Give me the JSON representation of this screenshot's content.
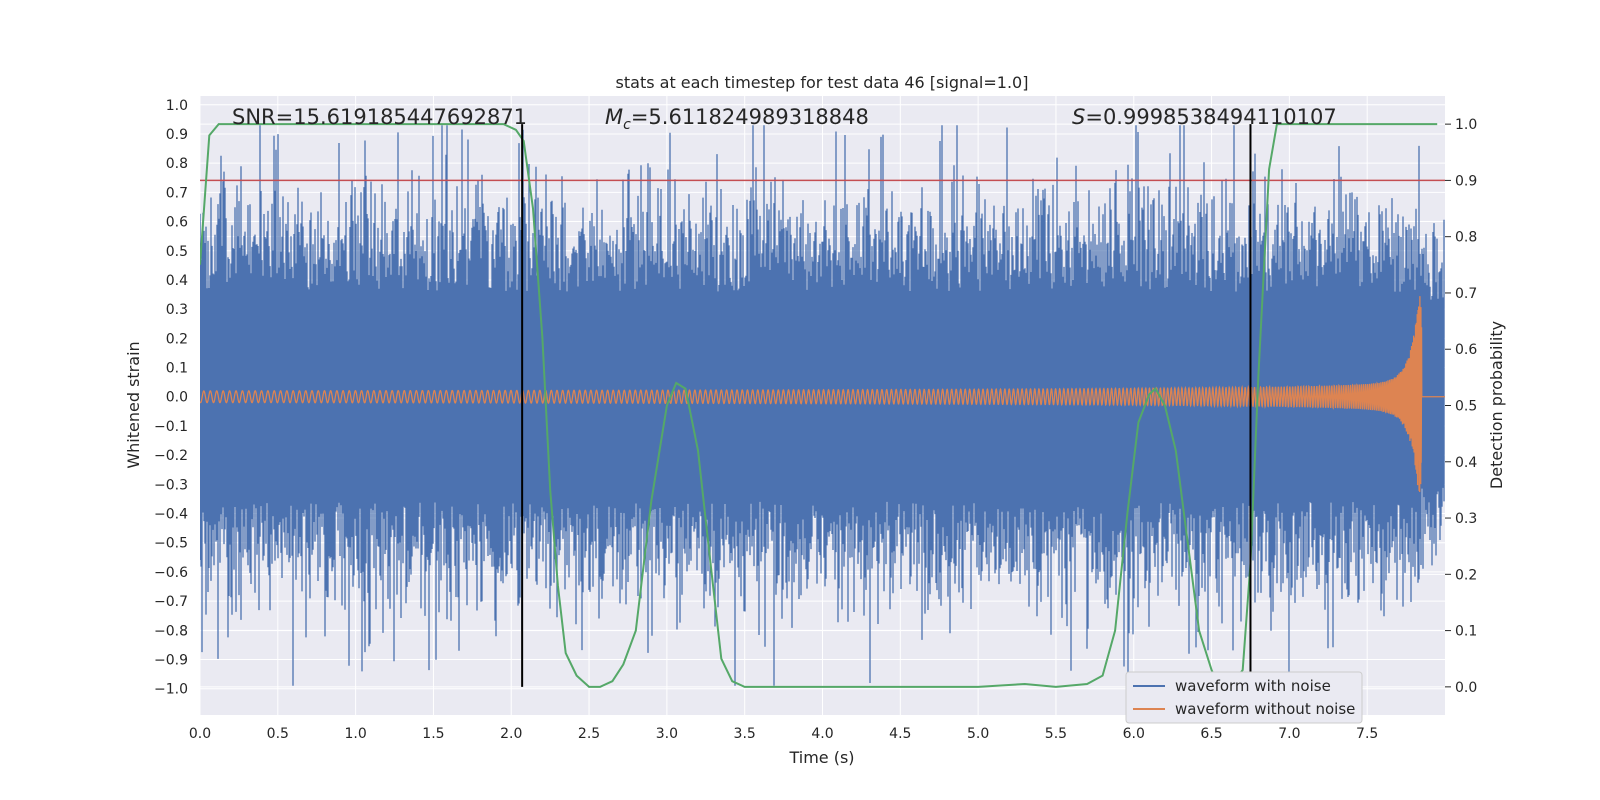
{
  "chart_data": {
    "type": "line",
    "title": "stats at each timestep for test data 46 [signal=1.0]",
    "xlabel": "Time (s)",
    "ylabel": "Whitened strain",
    "y2label": "Detection probability",
    "xlim": [
      0.0,
      8.0
    ],
    "ylim": [
      -1.09,
      1.03
    ],
    "y2lim": [
      -0.05,
      1.05
    ],
    "xticks": [
      "0.0",
      "0.5",
      "1.0",
      "1.5",
      "2.0",
      "2.5",
      "3.0",
      "3.5",
      "4.0",
      "4.5",
      "5.0",
      "5.5",
      "6.0",
      "6.5",
      "7.0",
      "7.5"
    ],
    "yticks": [
      "1.0",
      "0.9",
      "0.8",
      "0.7",
      "0.6",
      "0.5",
      "0.4",
      "0.3",
      "0.2",
      "0.1",
      "0.0",
      "−0.1",
      "−0.2",
      "−0.3",
      "−0.4",
      "−0.5",
      "−0.6",
      "−0.7",
      "−0.8",
      "−0.9",
      "−1.0"
    ],
    "y2ticks": [
      "1.0",
      "0.9",
      "0.8",
      "0.7",
      "0.6",
      "0.5",
      "0.4",
      "0.3",
      "0.2",
      "0.1",
      "0.0"
    ],
    "annotations": {
      "snr": "SNR=15.619185447692871",
      "mc_symbol": "M",
      "mc_sub": "c",
      "mc_value": "=5.611824989318848",
      "s_symbol": "S",
      "s_value": "=0.9998538494110107"
    },
    "threshold": {
      "value": 0.9,
      "axis": "y2",
      "color": "#c44e52"
    },
    "vlines": [
      2.07,
      6.75
    ],
    "merger_time": 7.85,
    "series": [
      {
        "name": "waveform with noise",
        "color": "#4c72b0",
        "axis": "y1",
        "description": "whitened noisy strain, amplitude ~0.5 with spikes up to ~0.93 and down to ~-0.99"
      },
      {
        "name": "waveform without noise",
        "color": "#dd8452",
        "axis": "y1",
        "description": "chirp signal, amplitude ~0.02 growing to ~0.37 at t=7.85 s"
      },
      {
        "name": "detection probability",
        "color": "#55a868",
        "axis": "y2",
        "x": [
          0.0,
          0.06,
          0.12,
          0.2,
          0.5,
          1.0,
          1.5,
          1.95,
          2.03,
          2.08,
          2.14,
          2.2,
          2.25,
          2.3,
          2.35,
          2.42,
          2.5,
          2.57,
          2.65,
          2.72,
          2.8,
          2.9,
          3.0,
          3.06,
          3.12,
          3.2,
          3.28,
          3.35,
          3.42,
          3.5,
          4.0,
          4.5,
          5.0,
          5.3,
          5.5,
          5.7,
          5.8,
          5.88,
          5.96,
          6.03,
          6.1,
          6.14,
          6.2,
          6.27,
          6.35,
          6.42,
          6.5,
          6.55,
          6.62,
          6.7,
          6.75,
          6.8,
          6.87,
          6.92,
          7.0,
          7.5,
          7.95
        ],
        "y": [
          0.75,
          0.98,
          1.0,
          1.0,
          1.0,
          1.0,
          1.0,
          1.0,
          0.99,
          0.97,
          0.85,
          0.62,
          0.35,
          0.18,
          0.06,
          0.02,
          0.0,
          0.0,
          0.01,
          0.04,
          0.1,
          0.33,
          0.5,
          0.54,
          0.53,
          0.42,
          0.22,
          0.05,
          0.01,
          0.0,
          0.0,
          0.0,
          0.0,
          0.005,
          0.0,
          0.005,
          0.02,
          0.1,
          0.31,
          0.47,
          0.52,
          0.53,
          0.5,
          0.42,
          0.25,
          0.1,
          0.03,
          0.0,
          0.0,
          0.03,
          0.22,
          0.55,
          0.92,
          1.0,
          1.0,
          1.0,
          1.0
        ]
      }
    ],
    "legend": {
      "location": "lower-right",
      "entries": [
        "waveform with noise",
        "waveform without noise"
      ]
    },
    "colors": {
      "background": "#eaeaf2",
      "grid": "#ffffff",
      "noise": "#4c72b0",
      "signal": "#dd8452",
      "probability": "#55a868",
      "threshold": "#c44e52",
      "vline": "#000000"
    }
  }
}
